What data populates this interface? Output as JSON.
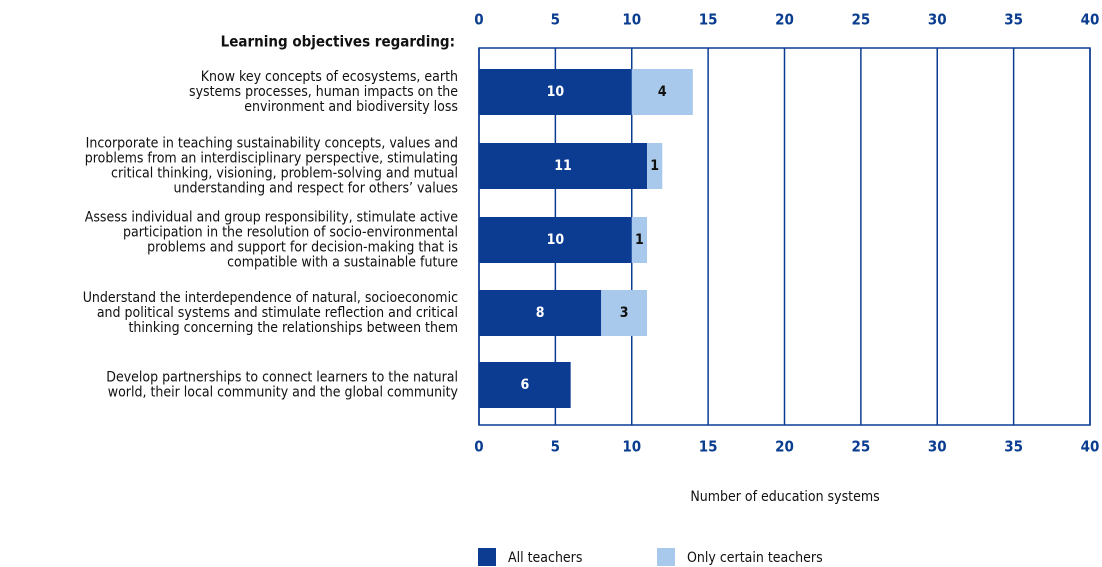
{
  "chart_data": {
    "type": "stacked-bar",
    "orientation": "horizontal",
    "heading": "Learning objectives regarding:",
    "categories": [
      "Know key concepts of ecosystems, earth\nsystems processes, human impacts on the\nenvironment and biodiversity loss",
      "Incorporate in teaching sustainability concepts, values and\nproblems from an interdisciplinary perspective, stimulating\ncritical thinking, visioning, problem-solving and mutual\nunderstanding and respect for others’ values",
      "Assess individual and group responsibility, stimulate active\nparticipation in the resolution of socio-environmental\nproblems and support for decision-making that is\ncompatible with a sustainable future",
      "Understand the interdependence of natural, socioeconomic\nand political systems and stimulate reflection and critical\nthinking concerning the relationships between them",
      "Develop partnerships to connect learners to the natural\nworld, their local community and the global community"
    ],
    "series": [
      {
        "name": "All teachers",
        "color": "#0b3c92",
        "label_color": "#ffffff",
        "values": [
          10,
          11,
          10,
          8,
          6
        ]
      },
      {
        "name": "Only certain teachers",
        "color": "#a9c9ec",
        "label_color": "#111111",
        "values": [
          4,
          1,
          1,
          3,
          null
        ]
      }
    ],
    "xlabel": "Number of education systems",
    "xlim": [
      0,
      40
    ],
    "xticks": [
      0,
      5,
      10,
      15,
      20,
      25,
      30,
      35,
      40
    ],
    "grid": true
  }
}
